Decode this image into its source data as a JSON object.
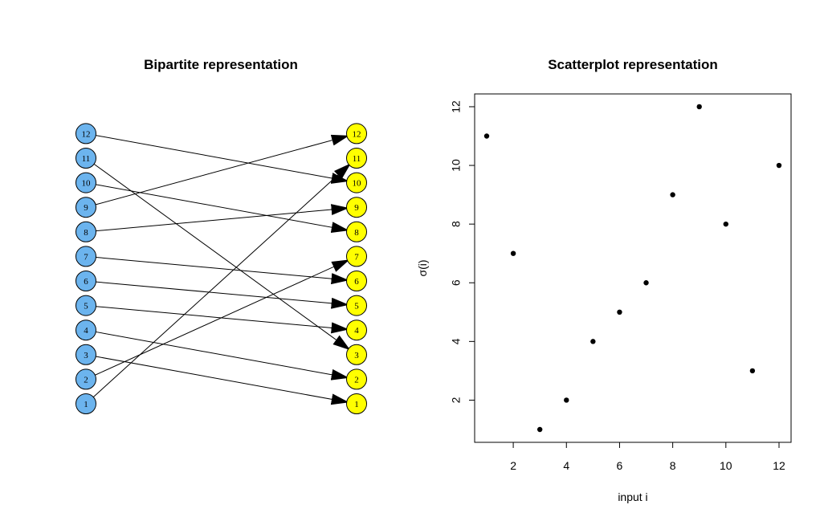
{
  "chart_data": [
    {
      "type": "diagram",
      "title": "Bipartite representation",
      "left_nodes": [
        "1",
        "2",
        "3",
        "4",
        "5",
        "6",
        "7",
        "8",
        "9",
        "10",
        "11",
        "12"
      ],
      "right_nodes": [
        "1",
        "2",
        "3",
        "4",
        "5",
        "6",
        "7",
        "8",
        "9",
        "10",
        "11",
        "12"
      ],
      "mapping": [
        11,
        7,
        1,
        2,
        4,
        5,
        6,
        9,
        12,
        8,
        3,
        10
      ],
      "colors": {
        "left_fill": "#6CB4EE",
        "right_fill": "#FFFF00",
        "edge": "#000000"
      }
    },
    {
      "type": "scatter",
      "title": "Scatterplot representation",
      "xlabel": "input i",
      "ylabel": "σ(i)",
      "x": [
        1,
        2,
        3,
        4,
        5,
        6,
        7,
        8,
        9,
        10,
        11,
        12
      ],
      "y": [
        11,
        7,
        1,
        2,
        4,
        5,
        6,
        9,
        12,
        8,
        3,
        10
      ],
      "xlim": [
        1,
        12
      ],
      "ylim": [
        1,
        12
      ],
      "xticks": [
        "2",
        "4",
        "6",
        "8",
        "10",
        "12"
      ],
      "yticks": [
        "2",
        "4",
        "6",
        "8",
        "10",
        "12"
      ],
      "grid": false,
      "colors": {
        "point": "#000000"
      }
    }
  ]
}
